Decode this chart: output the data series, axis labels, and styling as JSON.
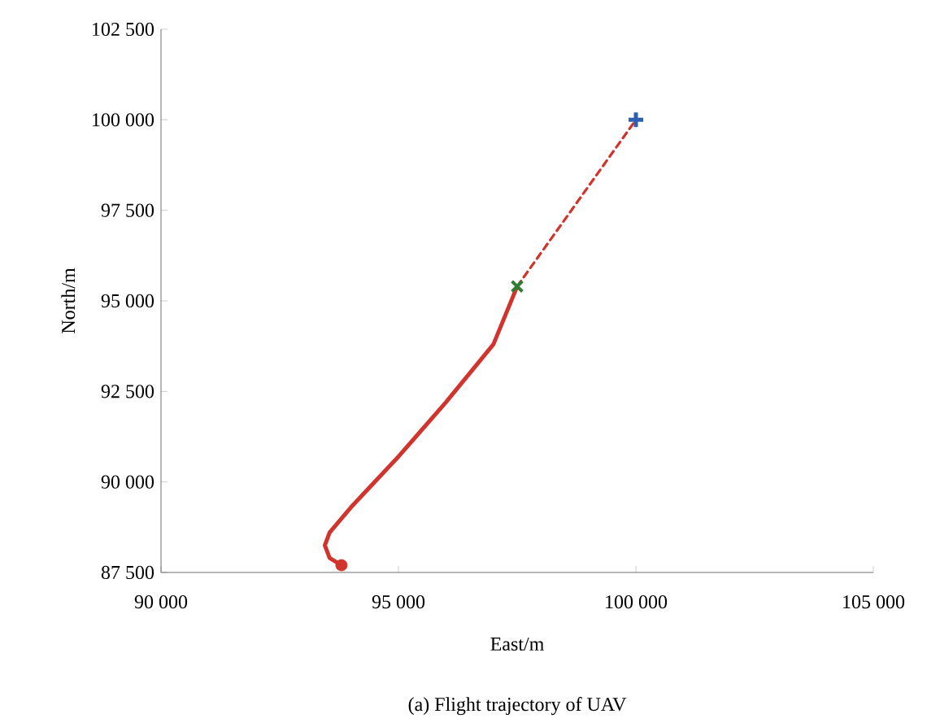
{
  "chart_data": {
    "type": "line",
    "xlabel": "East/m",
    "ylabel": "North/m",
    "annotations": [
      "(a) Flight trajectory of UAV"
    ],
    "xlim": [
      90000,
      105000
    ],
    "ylim": [
      87500,
      102500
    ],
    "xticks": [
      {
        "value": 90000,
        "label": "90 000"
      },
      {
        "value": 95000,
        "label": "95 000"
      },
      {
        "value": 100000,
        "label": "100 000"
      },
      {
        "value": 105000,
        "label": "105 000"
      }
    ],
    "yticks": [
      {
        "value": 87500,
        "label": "87 500"
      },
      {
        "value": 90000,
        "label": "90 000"
      },
      {
        "value": 92500,
        "label": "92 500"
      },
      {
        "value": 95000,
        "label": "95 000"
      },
      {
        "value": 97500,
        "label": "97 500"
      },
      {
        "value": 100000,
        "label": "100 000"
      },
      {
        "value": 102500,
        "label": "102 500"
      }
    ],
    "grid": false,
    "series": [
      {
        "color": "#d0342c",
        "line_style": "solid",
        "marker": "none",
        "x": [
          93800,
          93550,
          93450,
          93550,
          94000,
          95000,
          96000,
          97000,
          97500
        ],
        "values": [
          87700,
          87900,
          88250,
          88600,
          89300,
          90700,
          92200,
          93800,
          95400
        ]
      },
      {
        "color": "#d0342c",
        "line_style": "dashed",
        "marker": "none",
        "x": [
          97500,
          100000
        ],
        "values": [
          95400,
          100000
        ]
      },
      {
        "type": "scatter",
        "color": "#d0342c",
        "marker": "circle",
        "x": [
          93800
        ],
        "values": [
          87700
        ]
      },
      {
        "type": "scatter",
        "color": "#2e7d32",
        "marker": "cross",
        "x": [
          97500
        ],
        "values": [
          95400
        ]
      },
      {
        "type": "scatter",
        "color": "#2f5fb0",
        "marker": "plus",
        "x": [
          100000
        ],
        "values": [
          100000
        ]
      }
    ]
  }
}
